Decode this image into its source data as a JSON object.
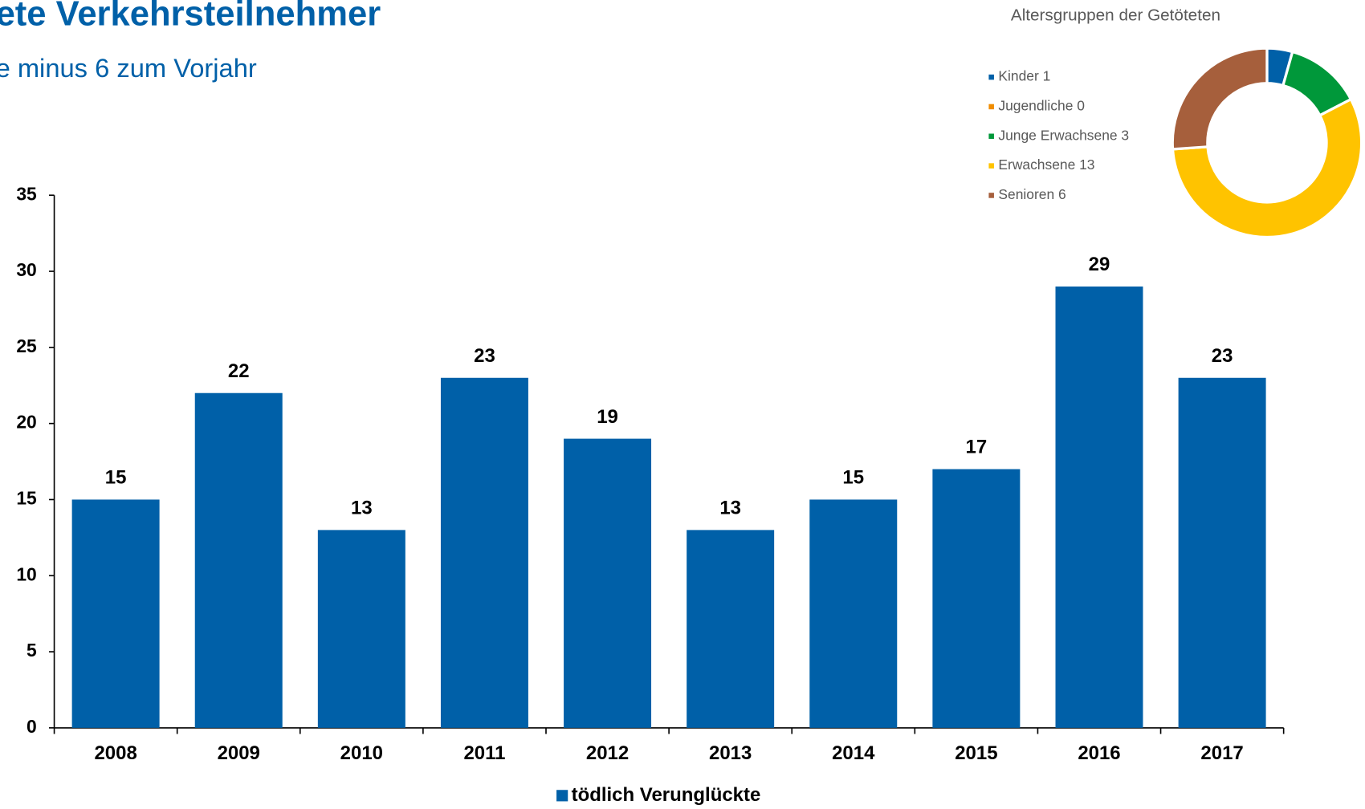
{
  "chart_data": [
    {
      "type": "bar",
      "title": "ete Verkehrsteilnehmer",
      "subtitle": "e minus 6 zum Vorjahr",
      "categories": [
        "2008",
        "2009",
        "2010",
        "2011",
        "2012",
        "2013",
        "2014",
        "2015",
        "2016",
        "2017"
      ],
      "series": [
        {
          "name": "tödlich Verunglückte",
          "color": "#0060a8",
          "values": [
            15,
            22,
            13,
            23,
            19,
            13,
            15,
            17,
            29,
            23
          ]
        }
      ],
      "ylim": [
        0,
        35
      ],
      "yticks": [
        0,
        5,
        10,
        15,
        20,
        25,
        30,
        35
      ],
      "legend": "bottom"
    },
    {
      "type": "donut",
      "title": "Altersgruppen der Getöteten",
      "categories": [
        "Kinder 1",
        "Jugendliche 0",
        "Junge Erwachsene 3",
        "Erwachsene 13",
        "Senioren 6"
      ],
      "values": [
        1,
        0,
        3,
        13,
        6
      ],
      "colors": [
        "#0060a8",
        "#f08c00",
        "#00983a",
        "#ffc300",
        "#a65f3c"
      ],
      "legend": "left"
    }
  ]
}
